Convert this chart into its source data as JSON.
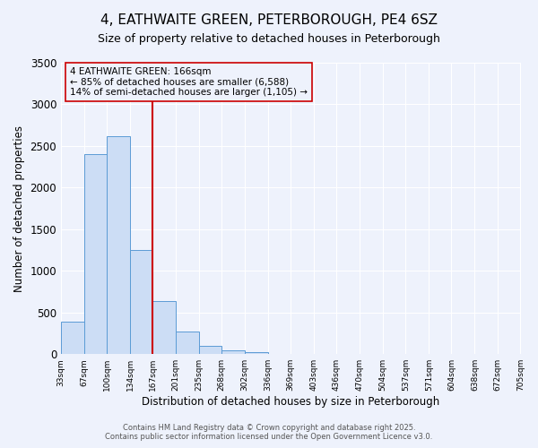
{
  "title": "4, EATHWAITE GREEN, PETERBOROUGH, PE4 6SZ",
  "subtitle": "Size of property relative to detached houses in Peterborough",
  "xlabel": "Distribution of detached houses by size in Peterborough",
  "ylabel": "Number of detached properties",
  "bar_edges": [
    33,
    67,
    100,
    134,
    167,
    201,
    235,
    268,
    302,
    336,
    369,
    403,
    436,
    470,
    504,
    537,
    571,
    604,
    638,
    672,
    705
  ],
  "bar_heights": [
    390,
    2400,
    2620,
    1250,
    640,
    270,
    95,
    50,
    20,
    5,
    3,
    2,
    1,
    1,
    1,
    0,
    0,
    0,
    0,
    0
  ],
  "bar_color": "#ccddf5",
  "bar_edgecolor": "#5b9bd5",
  "vline_x": 167,
  "vline_color": "#cc0000",
  "annotation_title": "4 EATHWAITE GREEN: 166sqm",
  "annotation_line2": "← 85% of detached houses are smaller (6,588)",
  "annotation_line3": "14% of semi-detached houses are larger (1,105) →",
  "annotation_box_edgecolor": "#cc0000",
  "ylim": [
    0,
    3500
  ],
  "yticks": [
    0,
    500,
    1000,
    1500,
    2000,
    2500,
    3000,
    3500
  ],
  "bg_color": "#eef2fc",
  "footer1": "Contains HM Land Registry data © Crown copyright and database right 2025.",
  "footer2": "Contains public sector information licensed under the Open Government Licence v3.0.",
  "title_fontsize": 11,
  "subtitle_fontsize": 9,
  "tick_label_fontsize": 6.5,
  "footer_fontsize": 6
}
